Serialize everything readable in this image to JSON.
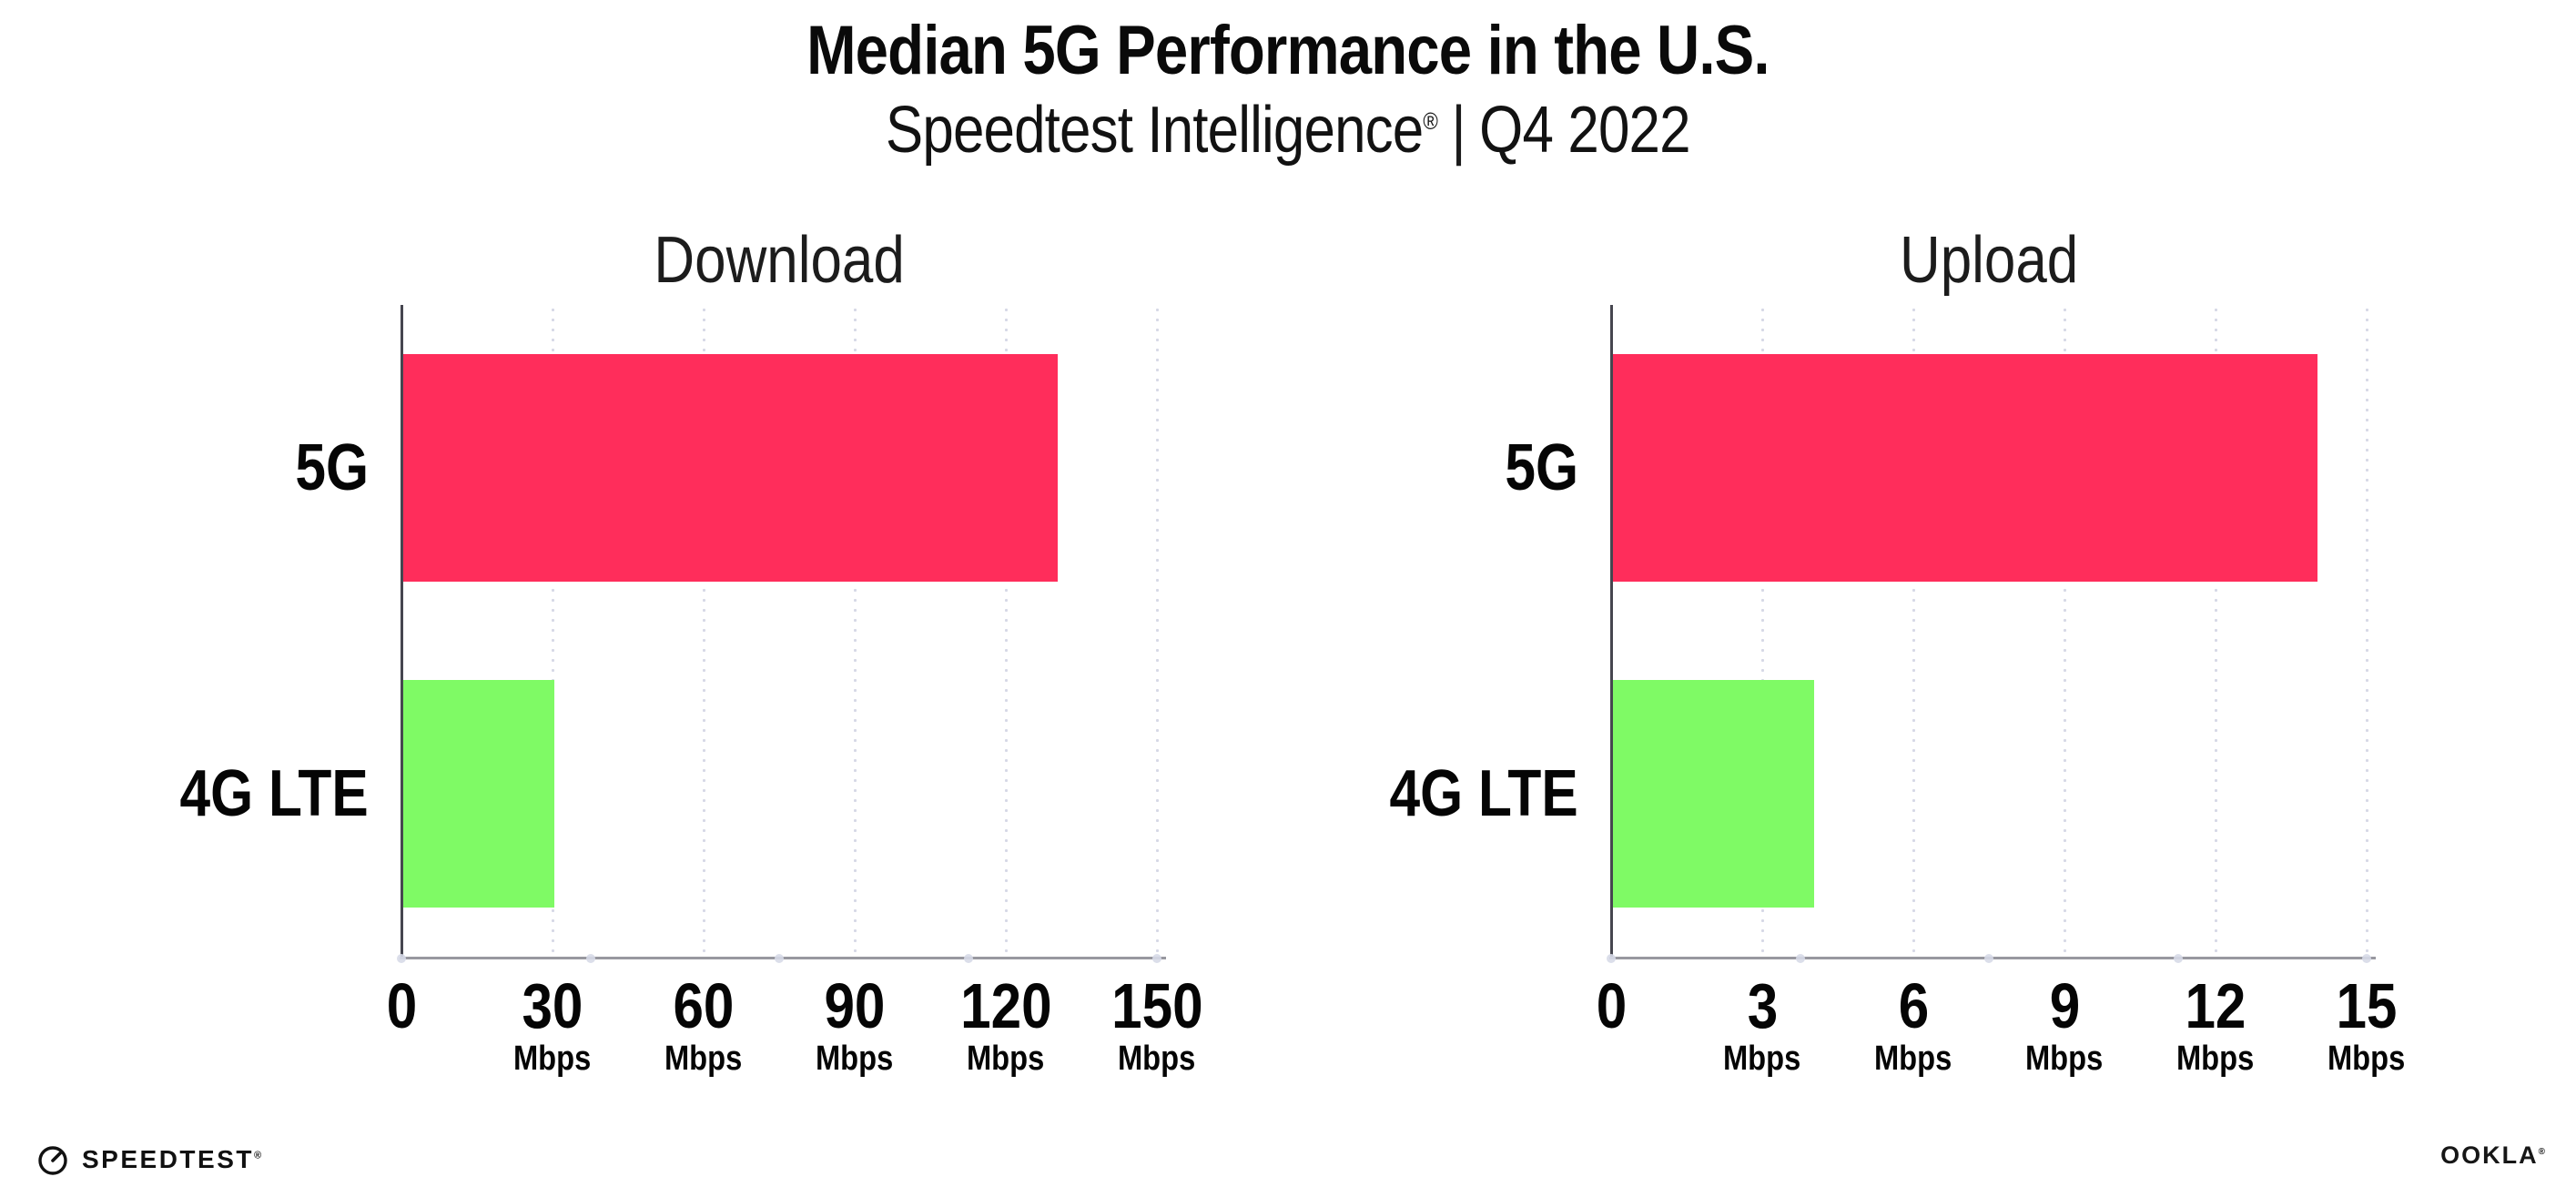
{
  "title": "Median 5G Performance in the U.S.",
  "subtitle": {
    "brand": "Speedtest Intelligence",
    "registered_mark": "®",
    "separator": "|",
    "period": "Q4 2022"
  },
  "chart_data": [
    {
      "type": "bar",
      "orientation": "horizontal",
      "title": "Download",
      "categories": [
        "5G",
        "4G LTE"
      ],
      "values": [
        130,
        30
      ],
      "unit": "Mbps",
      "xlim": [
        0,
        150
      ],
      "xticks": [
        0,
        30,
        60,
        90,
        120,
        150
      ],
      "bar_colors": [
        "#FF2D5B",
        "#7FFA65"
      ],
      "grid": "vertical-dotted",
      "legend": "none"
    },
    {
      "type": "bar",
      "orientation": "horizontal",
      "title": "Upload",
      "categories": [
        "5G",
        "4G LTE"
      ],
      "values": [
        14,
        4
      ],
      "unit": "Mbps",
      "xlim": [
        0,
        15
      ],
      "xticks": [
        0,
        3,
        6,
        9,
        12,
        15
      ],
      "bar_colors": [
        "#FF2D5B",
        "#7FFA65"
      ],
      "grid": "vertical-dotted",
      "legend": "none"
    }
  ],
  "footer": {
    "speedtest_logo_text": "SPEEDTEST",
    "speedtest_trademark": "®",
    "ookla_logo_text": "OOKLA",
    "ookla_trademark": "®"
  },
  "colors": {
    "bar_5g": "#FF2D5B",
    "bar_4g_lte": "#7FFA65",
    "gridline": "#D6D8E6",
    "axis_line": "#98989F",
    "axis_spine": "#46464F",
    "text": "#0B0B0B"
  }
}
